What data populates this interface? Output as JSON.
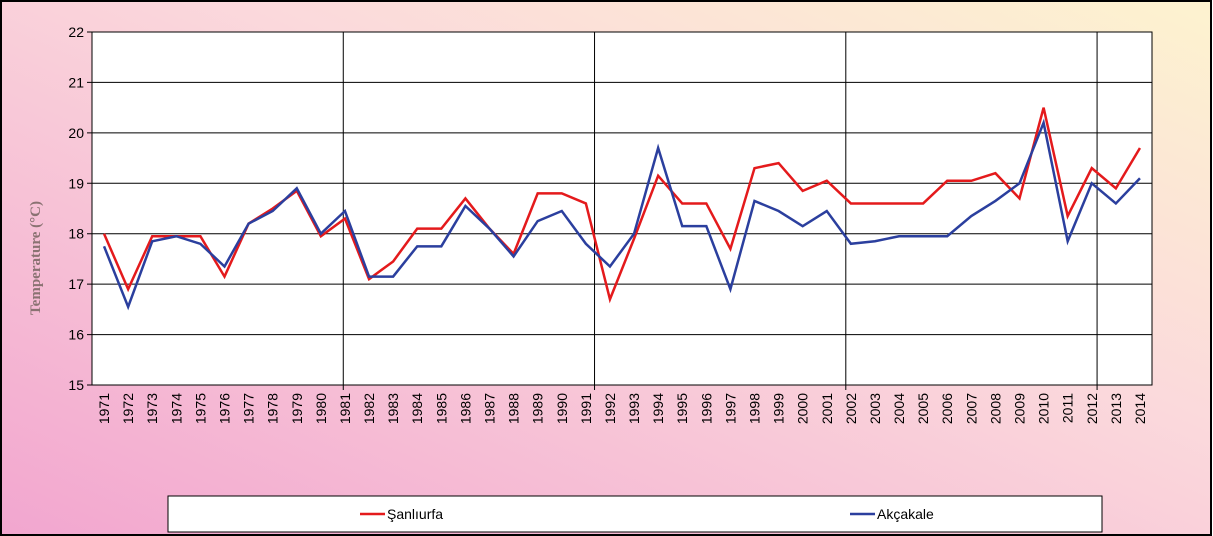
{
  "chart_data": {
    "type": "line",
    "y_label": "Temperature (°C)",
    "categories": [
      "1971",
      "1972",
      "1973",
      "1974",
      "1975",
      "1976",
      "1977",
      "1978",
      "1979",
      "1980",
      "1981",
      "1982",
      "1983",
      "1984",
      "1985",
      "1986",
      "1987",
      "1988",
      "1989",
      "1990",
      "1991",
      "1992",
      "1993",
      "1994",
      "1995",
      "1996",
      "1997",
      "1998",
      "1999",
      "2000",
      "2001",
      "2002",
      "2003",
      "2004",
      "2005",
      "2006",
      "2007",
      "2008",
      "2009",
      "2010",
      "2011",
      "2012",
      "2013",
      "2014"
    ],
    "series": [
      {
        "name": "Şanlıurfa",
        "color": "#e41a1c",
        "values": [
          18.0,
          16.9,
          17.95,
          17.95,
          17.95,
          17.15,
          18.2,
          18.5,
          18.85,
          17.95,
          18.3,
          17.1,
          17.45,
          18.1,
          18.1,
          18.7,
          18.1,
          17.6,
          18.8,
          18.8,
          18.6,
          16.7,
          17.9,
          19.15,
          18.6,
          18.6,
          17.7,
          19.3,
          19.4,
          18.85,
          19.05,
          18.6,
          18.6,
          18.6,
          18.6,
          19.05,
          19.05,
          19.2,
          18.7,
          20.5,
          18.35,
          19.3,
          18.9,
          19.7
        ]
      },
      {
        "name": "Akçakale",
        "color": "#2b3f9e",
        "values": [
          17.75,
          16.55,
          17.85,
          17.95,
          17.8,
          17.35,
          18.2,
          18.45,
          18.9,
          18.0,
          18.45,
          17.15,
          17.15,
          17.75,
          17.75,
          18.55,
          18.1,
          17.55,
          18.25,
          18.45,
          17.8,
          17.35,
          18.0,
          19.7,
          18.15,
          18.15,
          16.9,
          18.65,
          18.45,
          18.15,
          18.45,
          17.8,
          17.85,
          17.95,
          17.95,
          17.95,
          18.35,
          18.65,
          19.0,
          20.2,
          17.85,
          19.0,
          18.6,
          19.1
        ]
      }
    ],
    "ylim": [
      15,
      22
    ],
    "yticks": [
      15,
      16,
      17,
      18,
      19,
      20,
      21,
      22
    ],
    "grid": true
  }
}
